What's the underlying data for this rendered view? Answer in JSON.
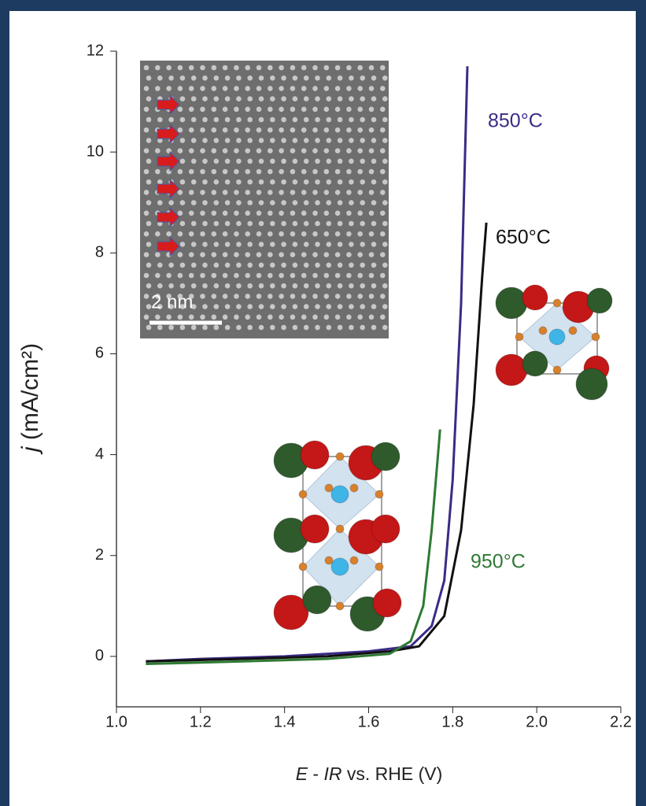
{
  "chart_data": {
    "type": "line",
    "x_label_parts": [
      "E",
      " - ",
      "IR",
      " vs. RHE (V)"
    ],
    "y_label_symbol": "j",
    "y_label_unit": "(mA/cm²)",
    "xlim": [
      1.0,
      2.2
    ],
    "xticks": [
      {
        "value": 1.0,
        "label": "1.0"
      },
      {
        "value": 1.2,
        "label": "1.2"
      },
      {
        "value": 1.4,
        "label": "1.4"
      },
      {
        "value": 1.6,
        "label": "1.6"
      },
      {
        "value": 1.8,
        "label": "1.8"
      },
      {
        "value": 2.0,
        "label": "2.0"
      },
      {
        "value": 2.2,
        "label": "2.2"
      }
    ],
    "ylim": [
      -1,
      12
    ],
    "yticks": [
      0,
      2,
      4,
      6,
      8,
      10,
      12
    ],
    "series": [
      {
        "name": "850°C",
        "color": "#3b2b85",
        "x": [
          1.07,
          1.2,
          1.4,
          1.6,
          1.7,
          1.75,
          1.78,
          1.8,
          1.82,
          1.835
        ],
        "values": [
          -0.1,
          -0.05,
          0.0,
          0.1,
          0.2,
          0.6,
          1.5,
          3.5,
          7,
          11.7
        ]
      },
      {
        "name": "650°C",
        "color": "#111111",
        "x": [
          1.07,
          1.3,
          1.5,
          1.65,
          1.72,
          1.78,
          1.82,
          1.85,
          1.87,
          1.88
        ],
        "values": [
          -0.1,
          -0.05,
          0.0,
          0.1,
          0.2,
          0.8,
          2.5,
          5,
          7.5,
          8.6
        ]
      },
      {
        "name": "950°C",
        "color": "#2e7a33",
        "x": [
          1.07,
          1.3,
          1.5,
          1.65,
          1.7,
          1.73,
          1.75,
          1.77
        ],
        "values": [
          -0.15,
          -0.1,
          -0.05,
          0.05,
          0.3,
          1,
          2.5,
          4.5
        ]
      }
    ],
    "inset_scale_label": "2 nm"
  }
}
